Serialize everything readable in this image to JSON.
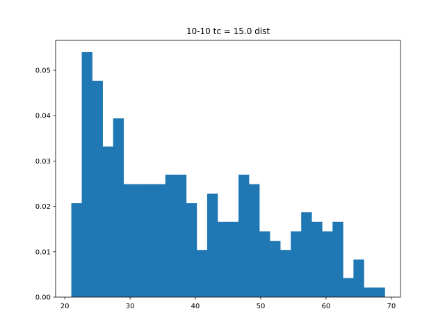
{
  "chart_data": {
    "type": "bar",
    "title": "10-10 tc = 15.0 dist",
    "xlabel": "",
    "ylabel": "",
    "xlim": [
      18.6,
      71.4
    ],
    "ylim": [
      0,
      0.0566
    ],
    "x_ticks": [
      20,
      30,
      40,
      50,
      60,
      70
    ],
    "x_tick_labels": [
      "20",
      "30",
      "40",
      "50",
      "60",
      "70"
    ],
    "y_ticks": [
      0.0,
      0.01,
      0.02,
      0.03,
      0.04,
      0.05
    ],
    "y_tick_labels": [
      "0.00",
      "0.01",
      "0.02",
      "0.03",
      "0.04",
      "0.05"
    ],
    "grid": false,
    "bar_color": "#1f77b4",
    "bin_edges": [
      21.0,
      22.6,
      24.2,
      25.8,
      27.4,
      29.0,
      30.6,
      32.2,
      33.8,
      35.4,
      37.0,
      38.6,
      40.2,
      41.8,
      43.4,
      45.0,
      46.6,
      48.2,
      49.8,
      51.4,
      53.0,
      54.6,
      56.2,
      57.8,
      59.4,
      61.0,
      62.6,
      64.2,
      65.8,
      67.4,
      69.0
    ],
    "values": [
      0.0207,
      0.054,
      0.0477,
      0.0332,
      0.0394,
      0.0249,
      0.0249,
      0.0249,
      0.0249,
      0.027,
      0.027,
      0.0207,
      0.0104,
      0.0228,
      0.0166,
      0.0166,
      0.027,
      0.0249,
      0.0145,
      0.0124,
      0.0104,
      0.0145,
      0.0187,
      0.0166,
      0.0145,
      0.0166,
      0.0042,
      0.0083,
      0.0021,
      0.0021
    ]
  }
}
